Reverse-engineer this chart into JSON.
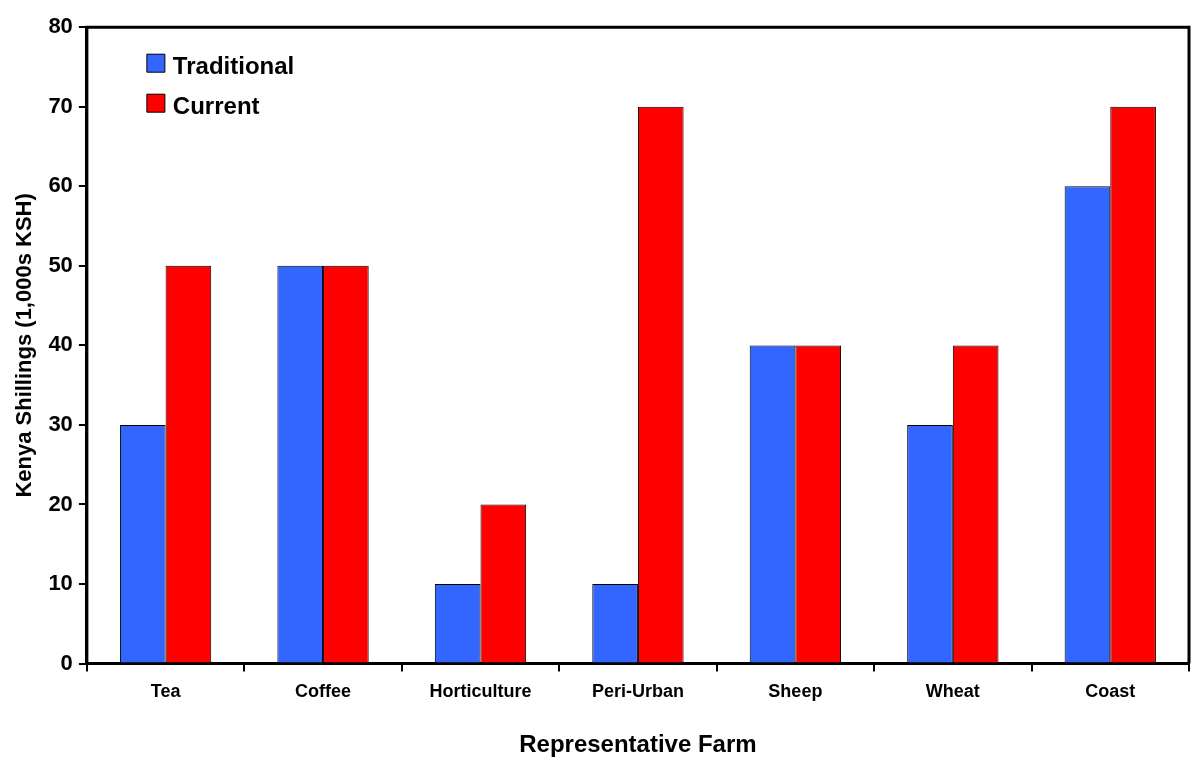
{
  "chart_data": {
    "type": "bar",
    "xlabel": "Representative Farm",
    "ylabel": "Kenya Shillings (1,000s KSH)",
    "categories": [
      "Tea",
      "Coffee",
      "Horticulture",
      "Peri-Urban",
      "Sheep",
      "Wheat",
      "Coast"
    ],
    "series": [
      {
        "name": "Traditional",
        "color": "#3366ff",
        "values": [
          30,
          50,
          10,
          10,
          40,
          30,
          60
        ]
      },
      {
        "name": "Current",
        "color": "#ff0000",
        "values": [
          50,
          50,
          20,
          70,
          40,
          40,
          70
        ]
      }
    ],
    "ylim": [
      0,
      80
    ],
    "yticks": [
      0,
      10,
      20,
      30,
      40,
      50,
      60,
      70,
      80
    ],
    "grid": false,
    "legend": "top left"
  }
}
